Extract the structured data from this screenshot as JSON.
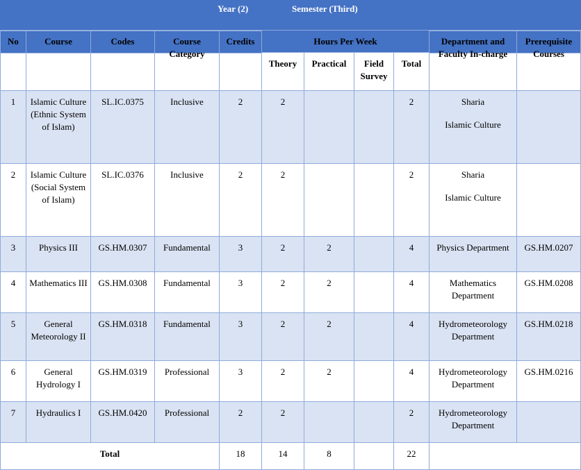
{
  "header": {
    "year": "Year (2)",
    "semester": "Semester (Third)"
  },
  "columns": {
    "no": "No",
    "course": "Course",
    "code": "Codes",
    "category": "Course Category",
    "credits": "Credits",
    "hours": "Hours Per Week",
    "theory": "Theory",
    "practical": "Practical",
    "field": "Field Survey",
    "total": "Total",
    "department": "Department and Faculty In-charge",
    "prerequisite": "Prerequisite Courses"
  },
  "rows": [
    {
      "no": "1",
      "course": "Islamic Culture (Ethnic System of Islam)",
      "code": "SL.IC.0375",
      "category": "Inclusive",
      "credits": 2,
      "theory": 2,
      "total": 2,
      "department": [
        "Sharia",
        "Islamic Culture"
      ]
    },
    {
      "no": "2",
      "course": "Islamic Culture (Social System of Islam)",
      "code": "SL.IC.0376",
      "category": "Inclusive",
      "credits": 2,
      "theory": 2,
      "total": 2,
      "department": [
        "Sharia",
        "Islamic Culture"
      ]
    },
    {
      "no": "3",
      "course": "Physics III",
      "code": "GS.HM.0307",
      "category": "Fundamental",
      "credits": 3,
      "theory": 2,
      "practical": 2,
      "total": 4,
      "department": [
        "Physics Department"
      ],
      "prerequisite": "GS.HM.0207"
    },
    {
      "no": "4",
      "course": "Mathematics III",
      "code": "GS.HM.0308",
      "category": "Fundamental",
      "credits": 3,
      "theory": 2,
      "practical": 2,
      "total": 4,
      "department": [
        "Mathematics Department"
      ],
      "prerequisite": "GS.HM.0208"
    },
    {
      "no": "5",
      "course": "General Meteorology II",
      "code": "GS.HM.0318",
      "category": "Fundamental",
      "credits": 3,
      "theory": 2,
      "practical": 2,
      "total": 4,
      "department": [
        "Hydrometeorology Department"
      ],
      "prerequisite": "GS.HM.0218"
    },
    {
      "no": "6",
      "course": "General Hydrology I",
      "code": "GS.HM.0319",
      "category": "Professional",
      "credits": 3,
      "theory": 2,
      "practical": 2,
      "total": 4,
      "department": [
        "Hydrometeorology Department"
      ],
      "prerequisite": "GS.HM.0216"
    },
    {
      "no": "7",
      "course": "Hydraulics I",
      "code": "GS.HM.0420",
      "category": "Professional",
      "credits": 2,
      "theory": 2,
      "total": 2,
      "department": [
        "Hydrometeorology Department"
      ]
    }
  ],
  "total": {
    "label": "Total",
    "credits": 18,
    "theory": 14,
    "practical": 8,
    "total": 22
  }
}
